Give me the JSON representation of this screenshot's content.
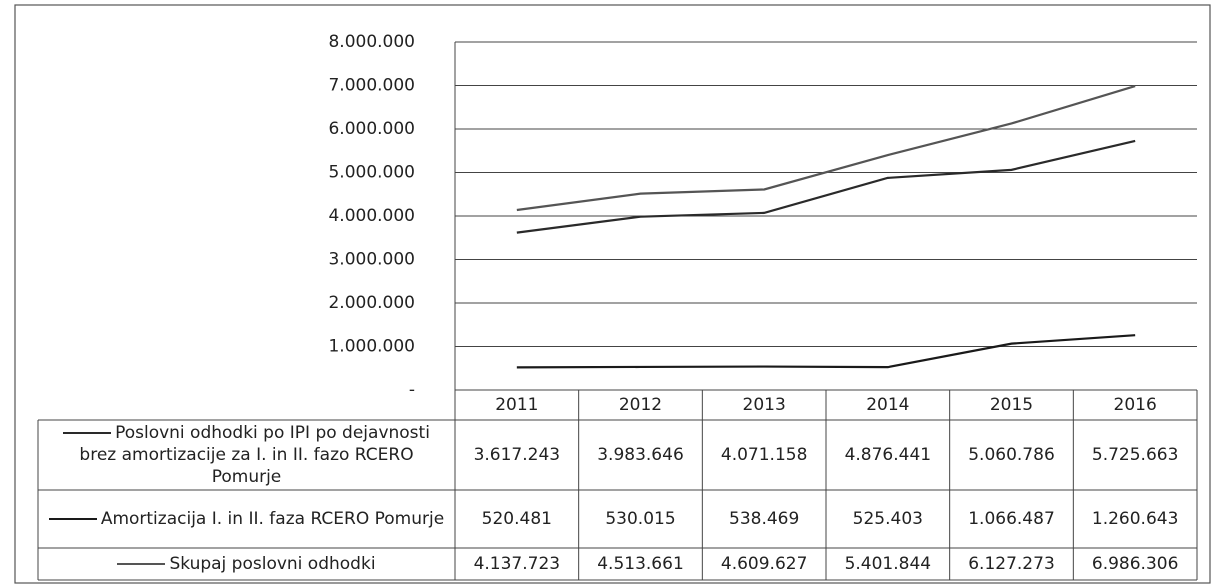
{
  "chart_data": {
    "type": "line",
    "categories": [
      "2011",
      "2012",
      "2013",
      "2014",
      "2015",
      "2016"
    ],
    "series": [
      {
        "name": "Poslovni odhodki  po IPI po dejavnosti brez amortizacije za I. in II. fazo RCERO Pomurje",
        "color": "#2a2a2a",
        "values": [
          3617243,
          3983646,
          4071158,
          4876441,
          5060786,
          5725663
        ],
        "value_labels": [
          "3.617.243",
          "3.983.646",
          "4.071.158",
          "4.876.441",
          "5.060.786",
          "5.725.663"
        ]
      },
      {
        "name": "Amortizacija I. in II. faza RCERO Pomurje",
        "color": "#1a1a1a",
        "values": [
          520481,
          530015,
          538469,
          525403,
          1066487,
          1260643
        ],
        "value_labels": [
          "520.481",
          "530.015",
          "538.469",
          "525.403",
          "1.066.487",
          "1.260.643"
        ]
      },
      {
        "name": "Skupaj poslovni odhodki",
        "color": "#555555",
        "values": [
          4137723,
          4513661,
          4609627,
          5401844,
          6127273,
          6986306
        ],
        "value_labels": [
          "4.137.723",
          "4.513.661",
          "4.609.627",
          "5.401.844",
          "6.127.273",
          "6.986.306"
        ]
      }
    ],
    "ylim": [
      0,
      8000000
    ],
    "yticks": [
      {
        "value": 0,
        "label": "-"
      },
      {
        "value": 1000000,
        "label": "1.000.000"
      },
      {
        "value": 2000000,
        "label": "2.000.000"
      },
      {
        "value": 3000000,
        "label": "3.000.000"
      },
      {
        "value": 4000000,
        "label": "4.000.000"
      },
      {
        "value": 5000000,
        "label": "5.000.000"
      },
      {
        "value": 6000000,
        "label": "6.000.000"
      },
      {
        "value": 7000000,
        "label": "7.000.000"
      },
      {
        "value": 8000000,
        "label": "8.000.000"
      }
    ],
    "grid": true
  }
}
